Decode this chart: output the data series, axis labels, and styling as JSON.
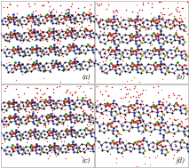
{
  "figsize": [
    2.13,
    1.89
  ],
  "dpi": 100,
  "panels": [
    "(a)",
    "(b)",
    "(c)",
    "(d)"
  ],
  "panel_label_fontsize": 5.0,
  "panel_label_color": "#222222",
  "background_color": "#ffffff",
  "panel_bg": "#ffffff",
  "border_color": "#999999",
  "border_lw": 0.4,
  "water_color": "#cc0000",
  "bond_color": "#222233",
  "bond_lw": 0.35,
  "atom_colors": {
    "C": "#111122",
    "N": "#1133cc",
    "O": "#cc2211",
    "Cl": "#119911",
    "S": "#aaaa00"
  },
  "seeds": [
    11,
    22,
    33,
    44
  ],
  "n_water_main": [
    130,
    120,
    110,
    115
  ],
  "n_molecules": [
    18,
    16,
    18,
    14
  ]
}
